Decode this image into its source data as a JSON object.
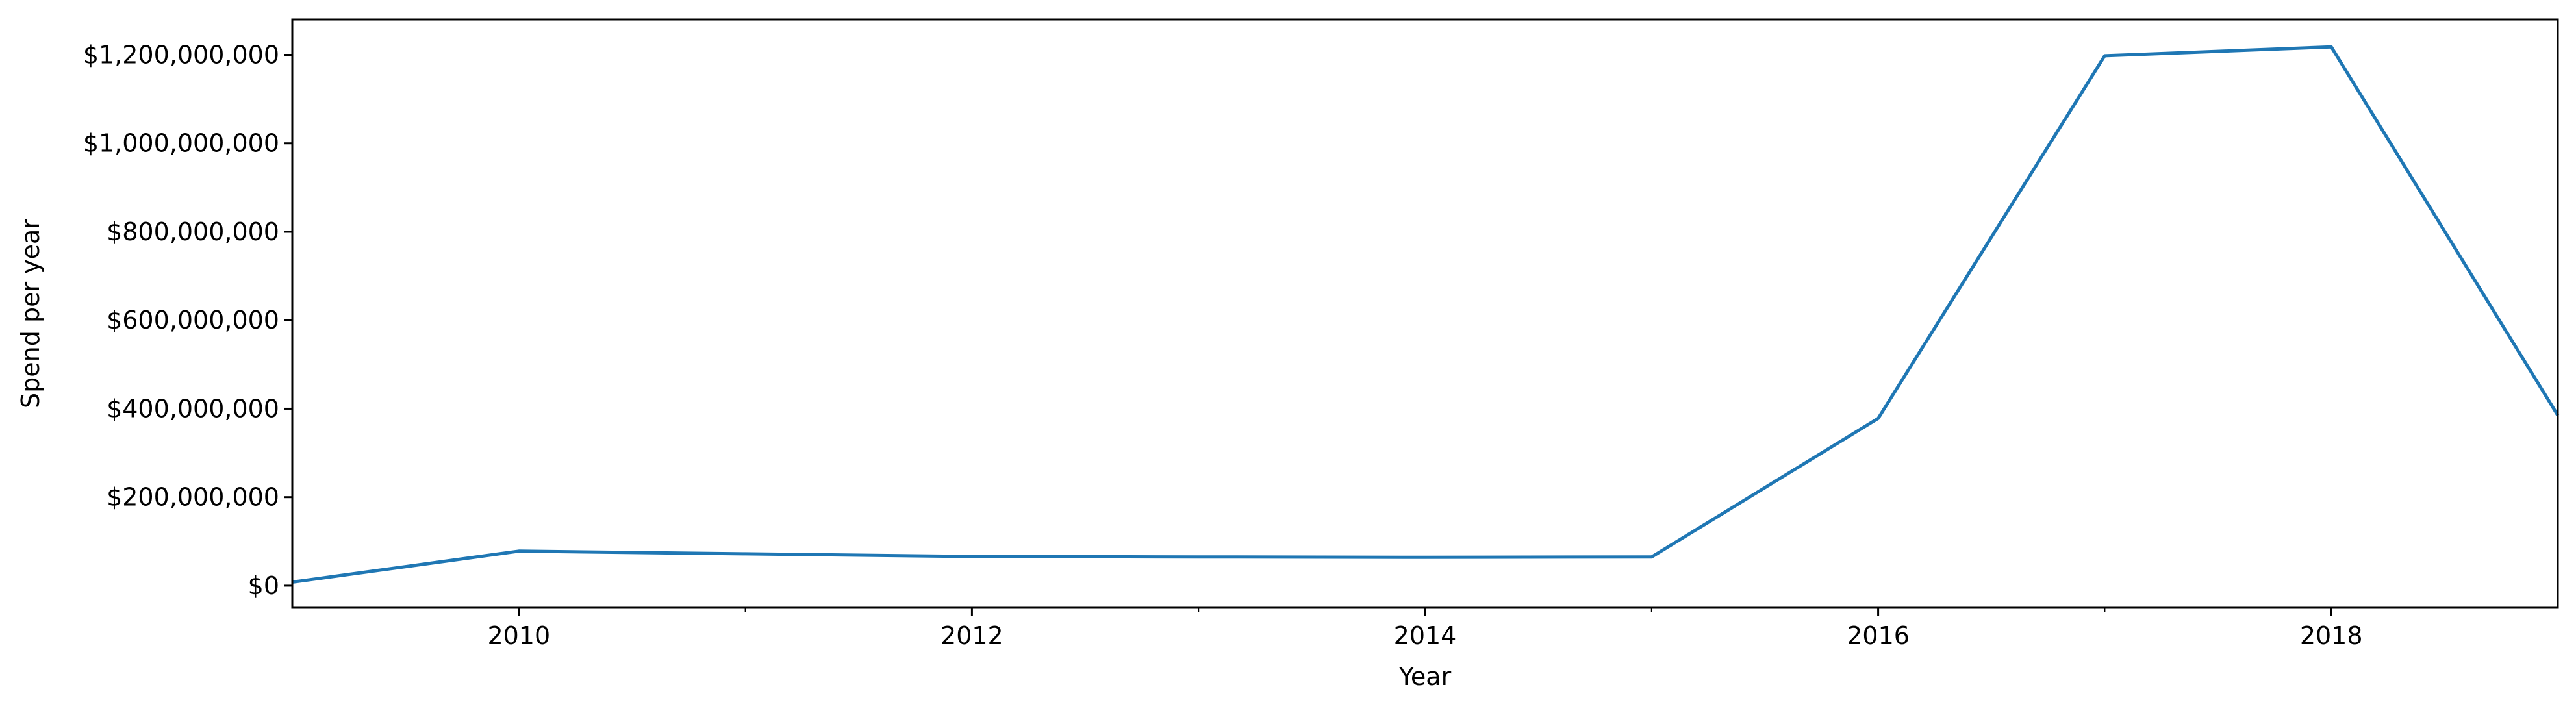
{
  "chart_data": {
    "type": "line",
    "xlabel": "Year",
    "ylabel": "Spend per year",
    "xlim": [
      2009,
      2019
    ],
    "ylim": [
      -50000000,
      1280000000
    ],
    "x_ticks": [
      {
        "value": 2010,
        "label": "2010"
      },
      {
        "value": 2012,
        "label": "2012"
      },
      {
        "value": 2014,
        "label": "2014"
      },
      {
        "value": 2016,
        "label": "2016"
      },
      {
        "value": 2018,
        "label": "2018"
      }
    ],
    "x_minor_ticks": [
      2011,
      2013,
      2015,
      2017
    ],
    "y_ticks": [
      {
        "value": 0,
        "label": "$0"
      },
      {
        "value": 200000000,
        "label": "$200,000,000"
      },
      {
        "value": 400000000,
        "label": "$400,000,000"
      },
      {
        "value": 600000000,
        "label": "$600,000,000"
      },
      {
        "value": 800000000,
        "label": "$800,000,000"
      },
      {
        "value": 1000000000,
        "label": "$1,000,000,000"
      },
      {
        "value": 1200000000,
        "label": "$1,200,000,000"
      }
    ],
    "grid": false,
    "series": [
      {
        "color": "#1f77b4",
        "x": [
          2009,
          2010,
          2011,
          2012,
          2013,
          2014,
          2015,
          2016,
          2017,
          2018,
          2019
        ],
        "y": [
          8000000,
          78000000,
          72000000,
          66000000,
          65000000,
          64000000,
          65000000,
          378000000,
          1198000000,
          1218000000,
          385000000
        ]
      }
    ]
  }
}
